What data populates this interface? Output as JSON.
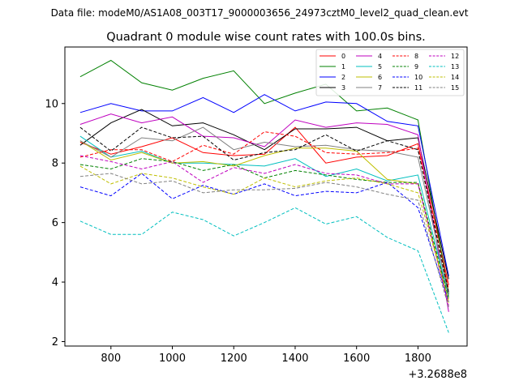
{
  "chart_data": {
    "type": "line",
    "suptitle": "Data file: modeM0/AS1A08_003T17_9000003656_24973cztM0_level2_quad_clean.evt",
    "title": "Quadrant 0 module wise count rates with 100.0s bins.",
    "xlabel": "",
    "ylabel": "",
    "x_offset_label": "+3.2688e8",
    "x": [
      700,
      800,
      900,
      1000,
      1100,
      1200,
      1300,
      1400,
      1500,
      1600,
      1700,
      1800,
      1900
    ],
    "xlim": [
      650,
      1960
    ],
    "ylim": [
      1.85,
      11.9
    ],
    "xticks": [
      800,
      1000,
      1200,
      1400,
      1600,
      1800
    ],
    "xtick_labels": [
      "800",
      "1000",
      "1200",
      "1400",
      "1600",
      "1800"
    ],
    "yticks": [
      2,
      4,
      6,
      8,
      10
    ],
    "ytick_labels": [
      "2",
      "4",
      "6",
      "8",
      "10"
    ],
    "legend_position": "top-right",
    "series": [
      {
        "name": "0",
        "color": "#ff0000",
        "dash": "solid",
        "values": [
          8.7,
          8.3,
          8.55,
          8.85,
          8.35,
          8.25,
          8.3,
          9.2,
          8.0,
          8.2,
          8.25,
          8.65,
          3.9
        ]
      },
      {
        "name": "1",
        "color": "#008000",
        "dash": "solid",
        "values": [
          10.9,
          11.45,
          10.7,
          10.45,
          10.85,
          11.1,
          10.0,
          10.35,
          10.65,
          9.75,
          9.85,
          9.45,
          3.6
        ]
      },
      {
        "name": "2",
        "color": "#0000ff",
        "dash": "solid",
        "values": [
          9.7,
          10.0,
          9.75,
          9.75,
          10.2,
          9.7,
          10.3,
          9.75,
          10.05,
          10.0,
          9.4,
          9.25,
          4.2
        ]
      },
      {
        "name": "3",
        "color": "#000000",
        "dash": "solid",
        "values": [
          8.6,
          9.35,
          9.8,
          9.25,
          9.35,
          8.95,
          8.45,
          9.15,
          9.15,
          9.2,
          8.75,
          8.85,
          4.1
        ]
      },
      {
        "name": "4",
        "color": "#bf00bf",
        "dash": "solid",
        "values": [
          9.3,
          9.65,
          9.35,
          9.55,
          8.9,
          8.85,
          8.55,
          9.45,
          9.2,
          9.35,
          9.3,
          8.95,
          3.0
        ]
      },
      {
        "name": "5",
        "color": "#00bfbf",
        "dash": "solid",
        "values": [
          8.9,
          8.2,
          8.4,
          8.0,
          8.0,
          7.95,
          7.9,
          8.15,
          7.55,
          7.8,
          7.4,
          7.6,
          3.5
        ]
      },
      {
        "name": "6",
        "color": "#bfbf00",
        "dash": "solid",
        "values": [
          8.75,
          8.1,
          8.35,
          8.0,
          8.05,
          7.9,
          8.25,
          8.5,
          8.5,
          8.4,
          7.45,
          7.3,
          3.3
        ]
      },
      {
        "name": "7",
        "color": "#808080",
        "dash": "solid",
        "values": [
          8.75,
          8.2,
          8.85,
          8.75,
          9.2,
          8.45,
          8.7,
          8.55,
          8.6,
          8.45,
          8.4,
          8.2,
          3.55
        ]
      },
      {
        "name": "8",
        "color": "#ff0000",
        "dash": "dashed",
        "values": [
          8.2,
          8.45,
          8.45,
          8.05,
          8.6,
          8.3,
          9.05,
          8.9,
          8.35,
          8.3,
          8.35,
          8.5,
          3.75
        ]
      },
      {
        "name": "9",
        "color": "#008000",
        "dash": "dashed",
        "values": [
          7.95,
          7.8,
          8.15,
          8.05,
          7.75,
          7.95,
          7.5,
          7.75,
          7.6,
          7.45,
          7.35,
          7.35,
          3.45
        ]
      },
      {
        "name": "10",
        "color": "#0000ff",
        "dash": "dashed",
        "values": [
          7.2,
          6.9,
          7.65,
          6.8,
          7.25,
          6.95,
          7.3,
          6.9,
          7.05,
          7.0,
          7.35,
          6.5,
          3.35
        ]
      },
      {
        "name": "11",
        "color": "#000000",
        "dash": "dashed",
        "values": [
          9.2,
          8.4,
          9.2,
          8.85,
          8.9,
          8.1,
          8.35,
          8.45,
          8.95,
          8.4,
          8.75,
          8.45,
          3.65
        ]
      },
      {
        "name": "12",
        "color": "#bf00bf",
        "dash": "dashed",
        "values": [
          8.25,
          8.05,
          7.8,
          8.05,
          7.35,
          7.85,
          7.65,
          7.95,
          7.65,
          7.6,
          7.3,
          7.3,
          3.2
        ]
      },
      {
        "name": "13",
        "color": "#00bfbf",
        "dash": "dashed",
        "values": [
          6.05,
          5.6,
          5.6,
          6.35,
          6.1,
          5.55,
          6.0,
          6.5,
          5.95,
          6.2,
          5.5,
          5.05,
          2.3
        ]
      },
      {
        "name": "14",
        "color": "#bfbf00",
        "dash": "dashed",
        "values": [
          7.9,
          7.3,
          7.65,
          7.5,
          7.2,
          6.95,
          7.5,
          7.2,
          7.4,
          7.5,
          7.3,
          7.0,
          3.4
        ]
      },
      {
        "name": "15",
        "color": "#808080",
        "dash": "dashed",
        "values": [
          7.55,
          7.65,
          7.3,
          7.4,
          7.0,
          7.1,
          7.1,
          7.15,
          7.35,
          7.2,
          6.95,
          6.75,
          3.15
        ]
      }
    ]
  }
}
